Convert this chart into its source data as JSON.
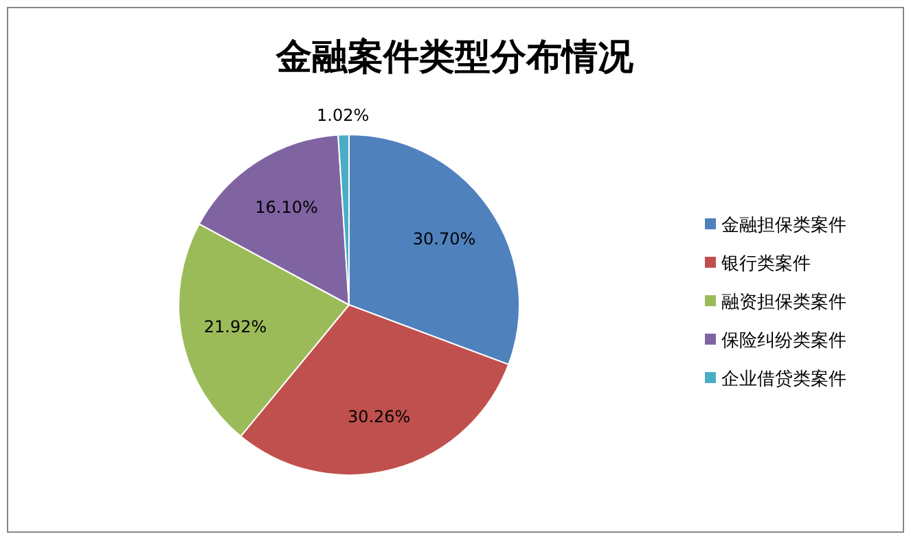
{
  "chart_data": {
    "type": "pie",
    "title": "金融案件类型分布情况",
    "categories": [
      "金融担保类案件",
      "银行类案件",
      "融资担保类案件",
      "保险纠纷类案件",
      "企业借贷类案件"
    ],
    "values": [
      30.7,
      30.26,
      21.92,
      16.1,
      1.02
    ],
    "colors": [
      "#4f81bd",
      "#c0504d",
      "#9bbb59",
      "#8064a2",
      "#4bacc6"
    ],
    "value_labels": [
      "30.70%",
      "30.26%",
      "21.92%",
      "16.10%",
      "1.02%"
    ],
    "legend": "right"
  }
}
